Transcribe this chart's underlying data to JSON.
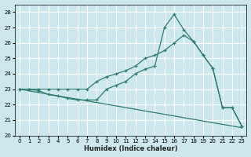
{
  "xlabel": "Humidex (Indice chaleur)",
  "xlim": [
    -0.5,
    23.5
  ],
  "ylim": [
    20,
    28.5
  ],
  "yticks": [
    20,
    21,
    22,
    23,
    24,
    25,
    26,
    27,
    28
  ],
  "xticks": [
    0,
    1,
    2,
    3,
    4,
    5,
    6,
    7,
    8,
    9,
    10,
    11,
    12,
    13,
    14,
    15,
    16,
    17,
    18,
    19,
    20,
    21,
    22,
    23
  ],
  "bg_color": "#cce8ee",
  "grid_color": "#ffffff",
  "line_color": "#2e7b6f",
  "line1_x": [
    0,
    1,
    2,
    3,
    4,
    5,
    6,
    7,
    8,
    9,
    10,
    11,
    12,
    13,
    14,
    15,
    16,
    17,
    18,
    19,
    20,
    21,
    22,
    23
  ],
  "line1_y": [
    23.0,
    23.0,
    22.9,
    22.65,
    22.55,
    22.4,
    22.3,
    22.3,
    22.3,
    23.0,
    23.25,
    23.5,
    24.0,
    24.3,
    24.5,
    27.0,
    27.85,
    26.85,
    26.1,
    25.2,
    24.35,
    21.8,
    21.8,
    20.6
  ],
  "line2_x": [
    0,
    1,
    2,
    3,
    4,
    5,
    6,
    7,
    8,
    9,
    10,
    11,
    12,
    13,
    14,
    15,
    16,
    17,
    18,
    19,
    20,
    21,
    22,
    23
  ],
  "line2_y": [
    23.0,
    23.0,
    23.0,
    23.0,
    23.0,
    23.0,
    23.0,
    23.0,
    23.5,
    23.8,
    24.0,
    24.2,
    24.5,
    25.0,
    25.2,
    25.5,
    26.0,
    26.5,
    26.1,
    25.2,
    24.35,
    21.8,
    21.8,
    20.6
  ],
  "line3_x": [
    0,
    23
  ],
  "line3_y": [
    23.0,
    20.5
  ]
}
